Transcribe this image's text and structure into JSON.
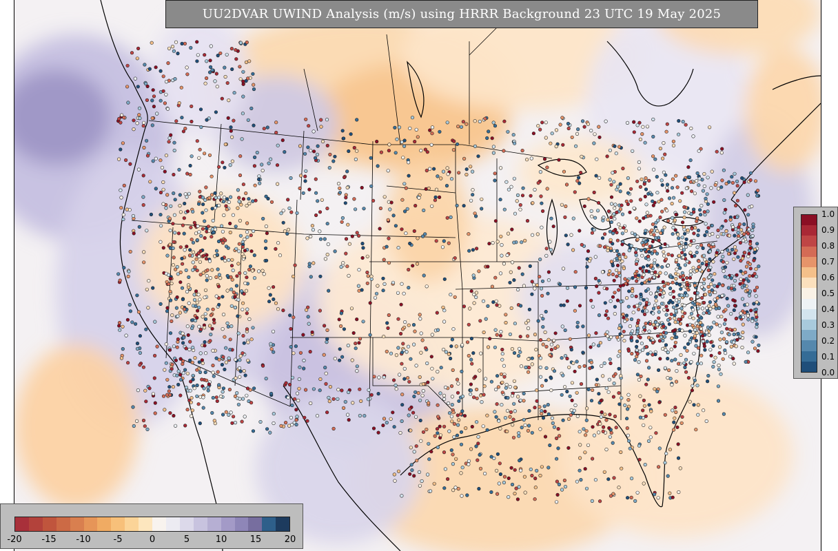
{
  "title": "UU2DVAR UWIND Analysis (m/s) using HRRR Background 23 UTC 19 May 2025",
  "wind_colorbar": {
    "ticks": [
      "-20",
      "-15",
      "-10",
      "-5",
      "0",
      "5",
      "10",
      "15",
      "20"
    ],
    "colors": [
      "#a8303a",
      "#b3423b",
      "#c0553d",
      "#cc6a45",
      "#d97f4f",
      "#e69558",
      "#f0ab63",
      "#f7c07a",
      "#fbd498",
      "#fde6be",
      "#f8f3ee",
      "#ecebf2",
      "#dcd9ea",
      "#c8c3df",
      "#b6afd3",
      "#a39ac7",
      "#8e86b8",
      "#776e9f",
      "#2e5f8a",
      "#1d3b5e"
    ]
  },
  "station_colorbar": {
    "ticks": [
      "1.0",
      "0.9",
      "0.8",
      "0.7",
      "0.6",
      "0.5",
      "0.4",
      "0.3",
      "0.2",
      "0.1",
      "0.0"
    ],
    "colors": [
      "#8b0f24",
      "#a92835",
      "#bf4545",
      "#d46b55",
      "#e6946a",
      "#f4c08a",
      "#fbe0bd",
      "#faf2e6",
      "#eef2f5",
      "#d3e4ee",
      "#a8cadc",
      "#7eaac7",
      "#5588ad",
      "#356c96",
      "#1f4e7a"
    ]
  },
  "colors": {
    "land_base": "#f6f1ee",
    "ocean": "#ffffff",
    "border": "#000000"
  }
}
